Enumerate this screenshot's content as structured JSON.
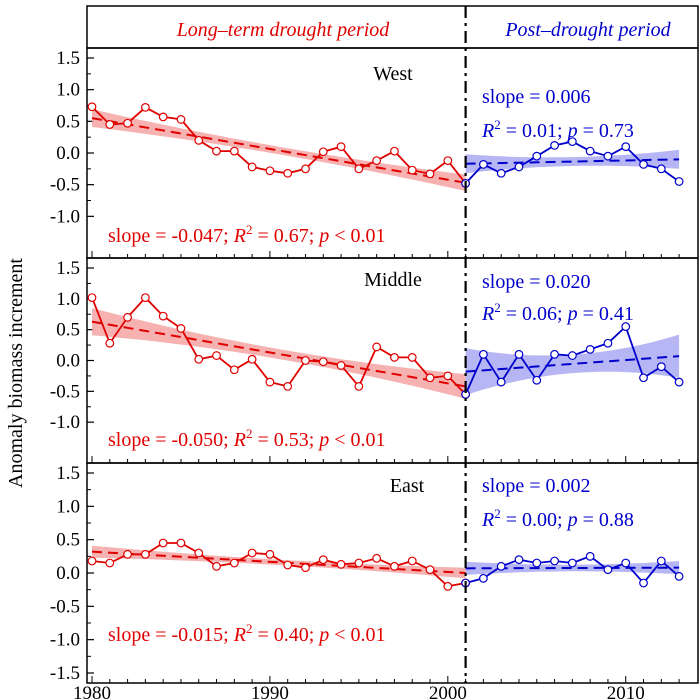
{
  "header": {
    "left_title": "Long–term drought period",
    "right_title": "Post–drought period",
    "left_color": "#e00000",
    "right_color": "#0000cc"
  },
  "ylabel": "Anomaly biomass increment",
  "colors": {
    "drought_line": "#e00000",
    "drought_band": "#f4a3a3",
    "post_line": "#0000cc",
    "post_band": "#a9a9f2"
  },
  "chart_data": [
    {
      "type": "line",
      "panel": "West",
      "x_range": [
        1980,
        2013
      ],
      "ylim": [
        -1.5,
        1.5
      ],
      "yticks": [
        -1.0,
        -0.5,
        0.0,
        0.5,
        1.0,
        1.5
      ],
      "ytick_labels": [
        "-1.0",
        "-0.5",
        "0.0",
        "0.5",
        "1.0",
        "1.5"
      ],
      "drought_stats": {
        "slope": "slope = -0.047; ",
        "r2_val": " = 0.67; ",
        "p_val": " < 0.01"
      },
      "post_stats": {
        "slope": "slope = 0.006",
        "r2_val": " = 0.01; ",
        "p_val": " = 0.73"
      },
      "drought_series": {
        "x": [
          1980,
          1981,
          1982,
          1983,
          1984,
          1985,
          1986,
          1987,
          1988,
          1989,
          1990,
          1991,
          1992,
          1993,
          1994,
          1995,
          1996,
          1997,
          1998,
          1999,
          2000,
          2001
        ],
        "y": [
          0.73,
          0.45,
          0.47,
          0.72,
          0.57,
          0.53,
          0.2,
          0.03,
          0.03,
          -0.22,
          -0.28,
          -0.32,
          -0.25,
          0.02,
          0.1,
          -0.25,
          -0.12,
          0.03,
          -0.27,
          -0.33,
          -0.12,
          -0.48
        ]
      },
      "drought_fit": {
        "x": [
          1980,
          2001
        ],
        "y": [
          0.55,
          -0.47
        ],
        "band_half_width": [
          0.14,
          0.06,
          0.13
        ]
      },
      "post_series": {
        "x": [
          2001,
          2002,
          2003,
          2004,
          2005,
          2006,
          2007,
          2008,
          2009,
          2010,
          2011,
          2012,
          2013
        ],
        "y": [
          -0.48,
          -0.18,
          -0.32,
          -0.22,
          -0.05,
          0.12,
          0.18,
          0.03,
          -0.05,
          0.1,
          -0.18,
          -0.25,
          -0.45
        ]
      },
      "post_fit": {
        "x": [
          2001,
          2013
        ],
        "y": [
          -0.17,
          -0.1
        ],
        "band_half_width": [
          0.15,
          0.07,
          0.15
        ]
      }
    },
    {
      "type": "line",
      "panel": "Middle",
      "x_range": [
        1980,
        2013
      ],
      "ylim": [
        -1.5,
        1.5
      ],
      "yticks": [
        -1.0,
        -0.5,
        0.0,
        0.5,
        1.0,
        1.5
      ],
      "ytick_labels": [
        "-1.0",
        "-0.5",
        "0.0",
        "0.5",
        "1.0",
        "1.5"
      ],
      "drought_stats": {
        "slope": "slope = -0.050; ",
        "r2_val": " = 0.53; ",
        "p_val": " < 0.01"
      },
      "post_stats": {
        "slope": "slope = 0.020",
        "r2_val": " = 0.06; ",
        "p_val": " = 0.41"
      },
      "drought_series": {
        "x": [
          1980,
          1981,
          1982,
          1983,
          1984,
          1985,
          1986,
          1987,
          1988,
          1989,
          1990,
          1991,
          1992,
          1993,
          1994,
          1995,
          1996,
          1997,
          1998,
          1999,
          2000,
          2001
        ],
        "y": [
          1.02,
          0.28,
          0.7,
          1.02,
          0.72,
          0.52,
          0.02,
          0.08,
          -0.15,
          0.02,
          -0.35,
          -0.42,
          0.0,
          -0.02,
          -0.08,
          -0.42,
          0.22,
          0.05,
          0.05,
          -0.28,
          -0.25,
          -0.55
        ]
      },
      "drought_fit": {
        "x": [
          1980,
          2001
        ],
        "y": [
          0.63,
          -0.42
        ],
        "band_half_width": [
          0.22,
          0.08,
          0.2
        ]
      },
      "post_series": {
        "x": [
          2001,
          2002,
          2003,
          2004,
          2005,
          2006,
          2007,
          2008,
          2009,
          2010,
          2011,
          2012,
          2013
        ],
        "y": [
          -0.55,
          0.1,
          -0.35,
          0.1,
          -0.32,
          0.1,
          0.08,
          0.18,
          0.28,
          0.55,
          -0.28,
          -0.1,
          -0.35
        ]
      },
      "post_fit": {
        "x": [
          2001,
          2013
        ],
        "y": [
          -0.18,
          0.07
        ],
        "band_half_width": [
          0.38,
          0.15,
          0.35
        ]
      }
    },
    {
      "type": "line",
      "panel": "East",
      "x_range": [
        1980,
        2013
      ],
      "ylim": [
        -1.5,
        1.5
      ],
      "yticks": [
        -1.5,
        -1.0,
        -0.5,
        0.0,
        0.5,
        1.0,
        1.5
      ],
      "ytick_labels": [
        "-1.5",
        "-1.0",
        "-0.5",
        "0.0",
        "0.5",
        "1.0",
        "1.5"
      ],
      "drought_stats": {
        "slope": "slope = -0.015; ",
        "r2_val": " = 0.40; ",
        "p_val": " < 0.01"
      },
      "post_stats": {
        "slope": "slope = 0.002",
        "r2_val": " = 0.00; ",
        "p_val": " = 0.88"
      },
      "drought_series": {
        "x": [
          1980,
          1981,
          1982,
          1983,
          1984,
          1985,
          1986,
          1987,
          1988,
          1989,
          1990,
          1991,
          1992,
          1993,
          1994,
          1995,
          1996,
          1997,
          1998,
          1999,
          2000,
          2001
        ],
        "y": [
          0.18,
          0.15,
          0.28,
          0.28,
          0.45,
          0.45,
          0.3,
          0.1,
          0.15,
          0.3,
          0.28,
          0.12,
          0.08,
          0.2,
          0.13,
          0.15,
          0.22,
          0.1,
          0.18,
          0.05,
          -0.2,
          -0.15
        ]
      },
      "drought_fit": {
        "x": [
          1980,
          2001
        ],
        "y": [
          0.32,
          0.0
        ],
        "band_half_width": [
          0.09,
          0.04,
          0.08
        ]
      },
      "post_series": {
        "x": [
          2001,
          2002,
          2003,
          2004,
          2005,
          2006,
          2007,
          2008,
          2009,
          2010,
          2011,
          2012,
          2013
        ],
        "y": [
          -0.15,
          -0.08,
          0.1,
          0.2,
          0.15,
          0.18,
          0.15,
          0.25,
          0.05,
          0.15,
          -0.15,
          0.18,
          -0.05
        ]
      },
      "post_fit": {
        "x": [
          2001,
          2013
        ],
        "y": [
          0.07,
          0.08
        ],
        "band_half_width": [
          0.1,
          0.05,
          0.1
        ]
      }
    }
  ],
  "xaxis": {
    "ticks": [
      1980,
      1990,
      2000,
      2010
    ],
    "tick_labels": [
      "1980",
      "1990",
      "2000",
      "2010"
    ]
  },
  "divider_year": 2001
}
